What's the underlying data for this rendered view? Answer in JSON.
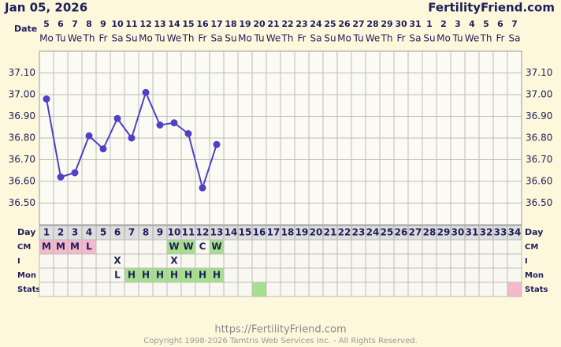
{
  "header": {
    "date": "Jan 05, 2026",
    "site": "FertilityFriend.com"
  },
  "chart_data": {
    "type": "line",
    "x_label": "Day",
    "date_label": "Date",
    "categories": [
      1,
      2,
      3,
      4,
      5,
      6,
      7,
      8,
      9,
      10,
      11,
      12,
      13,
      14,
      15,
      16,
      17,
      18,
      19,
      20,
      21,
      22,
      23,
      24,
      25,
      26,
      27,
      28,
      29,
      30,
      31,
      32,
      33,
      34
    ],
    "dates": [
      5,
      6,
      7,
      8,
      9,
      10,
      11,
      12,
      13,
      14,
      15,
      16,
      17,
      18,
      19,
      20,
      21,
      22,
      23,
      24,
      25,
      26,
      27,
      28,
      29,
      30,
      31,
      1,
      2,
      3,
      4,
      5,
      6,
      7
    ],
    "weekdays": [
      "Mo",
      "Tu",
      "We",
      "Th",
      "Fr",
      "Sa",
      "Su",
      "Mo",
      "Tu",
      "We",
      "Th",
      "Fr",
      "Sa",
      "Su",
      "Mo",
      "Tu",
      "We",
      "Th",
      "Fr",
      "Sa",
      "Su",
      "Mo",
      "Tu",
      "We",
      "Th",
      "Fr",
      "Sa",
      "Su",
      "Mo",
      "Tu",
      "We",
      "Th",
      "Fr",
      "Sa"
    ],
    "values": [
      36.98,
      36.62,
      36.64,
      36.81,
      36.75,
      36.89,
      36.8,
      37.01,
      36.86,
      36.87,
      36.82,
      36.57,
      36.77,
      null,
      null,
      null,
      null,
      null,
      null,
      null,
      null,
      null,
      null,
      null,
      null,
      null,
      null,
      null,
      null,
      null,
      null,
      null,
      null,
      null
    ],
    "color": "#5040c8",
    "ylim": [
      36.4,
      37.2
    ],
    "yticks": [
      {
        "value": 36.5,
        "label": "36.50"
      },
      {
        "value": 36.6,
        "label": "36.60"
      },
      {
        "value": 36.7,
        "label": "36.70"
      },
      {
        "value": 36.8,
        "label": "36.80"
      },
      {
        "value": 36.9,
        "label": "36.90"
      },
      {
        "value": 37.0,
        "label": "37.00"
      },
      {
        "value": 37.1,
        "label": "37.10"
      }
    ],
    "grid": true,
    "rows": [
      {
        "name": "CM",
        "values": [
          "M",
          "M",
          "M",
          "L",
          null,
          null,
          null,
          null,
          null,
          "W",
          "W",
          "C",
          "W",
          null,
          null,
          null,
          null,
          null,
          null,
          null,
          null,
          null,
          null,
          null,
          null,
          null,
          null,
          null,
          null,
          null,
          null,
          null,
          null,
          null
        ]
      },
      {
        "name": "I",
        "values": [
          null,
          null,
          null,
          null,
          null,
          "X",
          null,
          null,
          null,
          "X",
          null,
          null,
          null,
          null,
          null,
          null,
          null,
          null,
          null,
          null,
          null,
          null,
          null,
          null,
          null,
          null,
          null,
          null,
          null,
          null,
          null,
          null,
          null,
          null
        ]
      },
      {
        "name": "Mon",
        "values": [
          null,
          null,
          null,
          null,
          null,
          "L",
          "H",
          "H",
          "H",
          "H",
          "H",
          "H",
          "H",
          null,
          null,
          null,
          null,
          null,
          null,
          null,
          null,
          null,
          null,
          null,
          null,
          null,
          null,
          null,
          null,
          null,
          null,
          null,
          null,
          null
        ]
      },
      {
        "name": "Stats",
        "colors": [
          null,
          null,
          null,
          null,
          null,
          null,
          null,
          null,
          null,
          null,
          null,
          null,
          null,
          null,
          null,
          "#a6e08e",
          null,
          null,
          null,
          null,
          null,
          null,
          null,
          null,
          null,
          null,
          null,
          null,
          null,
          null,
          null,
          null,
          null,
          "#f5b9cb"
        ]
      }
    ]
  },
  "footer": {
    "url": "https://FertilityFriend.com",
    "copyright": "Copyright 1998-2026 Tamtris Web Services Inc. - All Rights Reserved."
  }
}
